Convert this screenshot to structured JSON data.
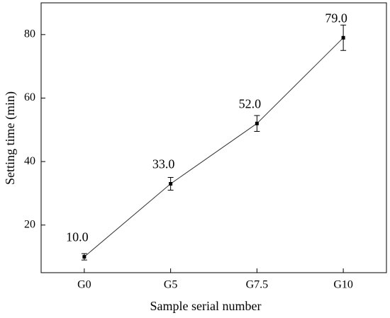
{
  "chart_data": {
    "type": "line",
    "x_label": "Sample serial number",
    "y_label": "Setting time (min)",
    "categories": [
      "G0",
      "G5",
      "G7.5",
      "G10"
    ],
    "values": [
      10,
      33,
      52,
      79
    ],
    "value_labels": [
      "10.0",
      "33.0",
      "52.0",
      "79.0"
    ],
    "errors": [
      1,
      2,
      2.5,
      4
    ],
    "color": "#333333",
    "ylim": [
      5,
      90
    ],
    "yticks": [
      20,
      40,
      60,
      80
    ]
  }
}
